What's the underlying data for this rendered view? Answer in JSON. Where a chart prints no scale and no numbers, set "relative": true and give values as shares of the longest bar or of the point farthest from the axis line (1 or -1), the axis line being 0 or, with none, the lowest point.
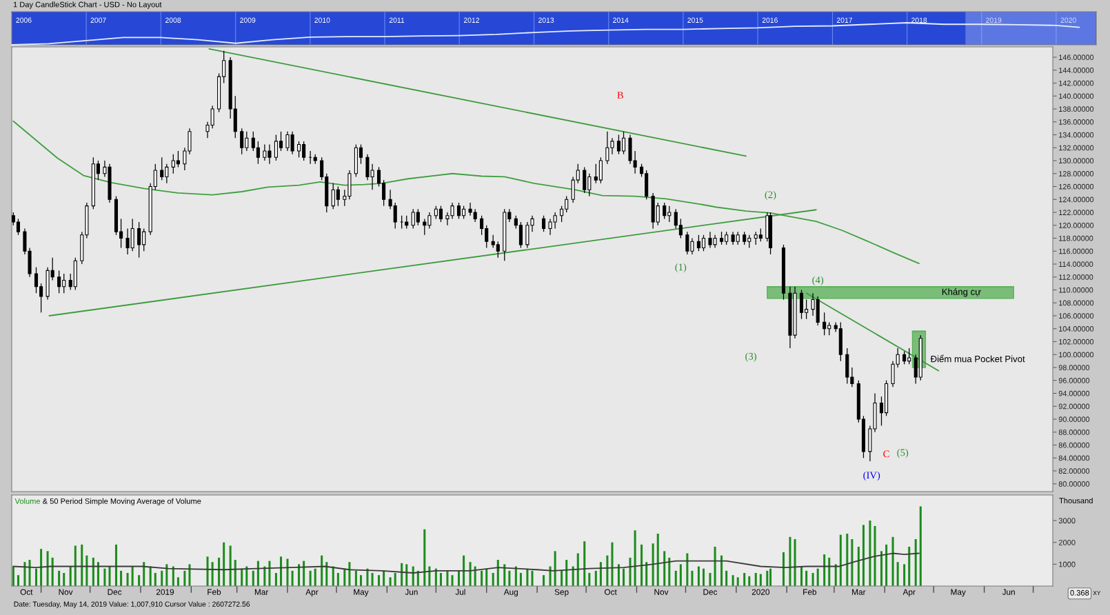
{
  "chart_data": [
    {
      "type": "line",
      "title": "1 Day CandleStick Chart - USD - No Layout",
      "relative": true,
      "x": [
        "2006-01-01",
        "2006-07-01",
        "2007-01-01",
        "2007-07-01",
        "2008-01-01",
        "2008-07-01",
        "2009-01-01",
        "2009-07-01",
        "2010-01-01",
        "2010-07-01",
        "2011-01-01",
        "2011-07-01",
        "2012-01-01",
        "2012-07-01",
        "2013-01-01",
        "2013-07-01",
        "2014-01-01",
        "2014-07-01",
        "2015-01-01",
        "2015-07-01",
        "2016-01-01",
        "2016-07-01",
        "2017-01-01",
        "2017-07-01",
        "2018-01-01",
        "2018-07-01",
        "2019-01-01",
        "2019-07-01",
        "2020-01-01",
        "2020-04-23"
      ],
      "series": [
        {
          "color": "#e6edff",
          "values": [
            0,
            0.05,
            0.19,
            0.33,
            0.33,
            0.23,
            0.07,
            0.23,
            0.35,
            0.37,
            0.37,
            0.4,
            0.42,
            0.47,
            0.56,
            0.63,
            0.67,
            0.7,
            0.7,
            0.74,
            0.77,
            0.84,
            0.86,
            0.93,
            1,
            0.93,
            0.93,
            0.91,
            0.88,
            0.79
          ]
        }
      ],
      "xlim": [
        "2006-01-01",
        "2020-07-15"
      ],
      "xticks": [
        {
          "value": "2006-03-01",
          "label": "2006"
        },
        {
          "value": "2007-01-01",
          "label": null
        },
        {
          "value": "2007-03-01",
          "label": "2007"
        },
        {
          "value": "2008-01-01",
          "label": null
        },
        {
          "value": "2008-03-01",
          "label": "2008"
        },
        {
          "value": "2009-01-01",
          "label": null
        },
        {
          "value": "2009-03-01",
          "label": "2009"
        },
        {
          "value": "2010-01-01",
          "label": null
        },
        {
          "value": "2010-03-01",
          "label": "2010"
        },
        {
          "value": "2011-01-01",
          "label": null
        },
        {
          "value": "2011-03-01",
          "label": "2011"
        },
        {
          "value": "2012-01-01",
          "label": null
        },
        {
          "value": "2012-03-01",
          "label": "2012"
        },
        {
          "value": "2013-01-01",
          "label": null
        },
        {
          "value": "2013-03-01",
          "label": "2013"
        },
        {
          "value": "2014-01-01",
          "label": null
        },
        {
          "value": "2014-03-01",
          "label": "2014"
        },
        {
          "value": "2015-01-01",
          "label": null
        },
        {
          "value": "2015-03-01",
          "label": "2015"
        },
        {
          "value": "2016-01-01",
          "label": null
        },
        {
          "value": "2016-03-01",
          "label": "2016"
        },
        {
          "value": "2017-01-01",
          "label": null
        },
        {
          "value": "2017-03-01",
          "label": "2017"
        },
        {
          "value": "2018-01-01",
          "label": null
        },
        {
          "value": "2018-03-01",
          "label": "2018"
        },
        {
          "value": "2019-01-01",
          "label": null
        },
        {
          "value": "2019-03-01",
          "label": "2019"
        },
        {
          "value": "2020-01-01",
          "label": null
        },
        {
          "value": "2020-03-01",
          "label": "2020"
        }
      ],
      "grid": "x",
      "bands": [
        {
          "axis": "x",
          "from": "2018-10-14",
          "to": "2020-07-13",
          "color": "#9fb2f2"
        }
      ],
      "tick_labels": "x"
    },
    {
      "type": "candlestick",
      "color": "#000000",
      "x": [
        "2018-10-15",
        "2018-10-18",
        "2018-10-22",
        "2018-10-25",
        "2018-10-29",
        "2018-11-01",
        "2018-11-05",
        "2018-11-08",
        "2018-11-12",
        "2018-11-15",
        "2018-11-19",
        "2018-11-22",
        "2018-11-26",
        "2018-11-29",
        "2018-12-03",
        "2018-12-06",
        "2018-12-10",
        "2018-12-13",
        "2018-12-17",
        "2018-12-20",
        "2018-12-24",
        "2018-12-27",
        "2018-12-31",
        "2019-01-03",
        "2019-01-07",
        "2019-01-10",
        "2019-01-14",
        "2019-01-17",
        "2019-01-21",
        "2019-01-24",
        "2019-01-28",
        "2019-01-31",
        "2019-02-11",
        "2019-02-14",
        "2019-02-18",
        "2019-02-21",
        "2019-02-25",
        "2019-02-28",
        "2019-03-04",
        "2019-03-07",
        "2019-03-11",
        "2019-03-14",
        "2019-03-18",
        "2019-03-21",
        "2019-03-25",
        "2019-03-28",
        "2019-04-01",
        "2019-04-04",
        "2019-04-08",
        "2019-04-11",
        "2019-04-15",
        "2019-04-18",
        "2019-04-22",
        "2019-04-25",
        "2019-04-29",
        "2019-05-02",
        "2019-05-06",
        "2019-05-09",
        "2019-05-13",
        "2019-05-16",
        "2019-05-20",
        "2019-05-23",
        "2019-05-27",
        "2019-05-30",
        "2019-06-03",
        "2019-06-06",
        "2019-06-10",
        "2019-06-13",
        "2019-06-17",
        "2019-06-20",
        "2019-06-24",
        "2019-06-27",
        "2019-07-01",
        "2019-07-04",
        "2019-07-08",
        "2019-07-11",
        "2019-07-15",
        "2019-07-18",
        "2019-07-22",
        "2019-07-25",
        "2019-07-29",
        "2019-08-01",
        "2019-08-05",
        "2019-08-08",
        "2019-08-12",
        "2019-08-15",
        "2019-08-19",
        "2019-08-22",
        "2019-08-26",
        "2019-08-29",
        "2019-09-05",
        "2019-09-09",
        "2019-09-12",
        "2019-09-16",
        "2019-09-19",
        "2019-09-23",
        "2019-09-26",
        "2019-09-30",
        "2019-10-03",
        "2019-10-07",
        "2019-10-10",
        "2019-10-14",
        "2019-10-17",
        "2019-10-21",
        "2019-10-24",
        "2019-10-28",
        "2019-10-31",
        "2019-11-04",
        "2019-11-07",
        "2019-11-11",
        "2019-11-14",
        "2019-11-18",
        "2019-11-21",
        "2019-11-25",
        "2019-11-28",
        "2019-12-02",
        "2019-12-05",
        "2019-12-09",
        "2019-12-12",
        "2019-12-16",
        "2019-12-19",
        "2019-12-23",
        "2019-12-26",
        "2019-12-30",
        "2020-01-02",
        "2020-01-06",
        "2020-01-09",
        "2020-01-13",
        "2020-01-16",
        "2020-01-20",
        "2020-01-22",
        "2020-01-30",
        "2020-02-03",
        "2020-02-06",
        "2020-02-10",
        "2020-02-13",
        "2020-02-17",
        "2020-02-20",
        "2020-02-24",
        "2020-02-27",
        "2020-03-02",
        "2020-03-05",
        "2020-03-09",
        "2020-03-12",
        "2020-03-16",
        "2020-03-19",
        "2020-03-23",
        "2020-03-26",
        "2020-03-30",
        "2020-04-02",
        "2020-04-06",
        "2020-04-09",
        "2020-04-13",
        "2020-04-16",
        "2020-04-20",
        "2020-04-23"
      ],
      "ohlc": [
        [
          121.5,
          122,
          120,
          120.5
        ],
        [
          120.5,
          121,
          118.5,
          119
        ],
        [
          119,
          119.5,
          115.5,
          116
        ],
        [
          116,
          116.5,
          112,
          112.5
        ],
        [
          112.5,
          113.5,
          109.5,
          110.5
        ],
        [
          110.5,
          111,
          106.5,
          109
        ],
        [
          109,
          113.5,
          108.5,
          113
        ],
        [
          113,
          115,
          111.5,
          112
        ],
        [
          112,
          113,
          109.5,
          110.5
        ],
        [
          110.5,
          112.5,
          109.5,
          111.5
        ],
        [
          111.5,
          112.5,
          110,
          110.5
        ],
        [
          110.5,
          115,
          110,
          114.5
        ],
        [
          114.5,
          119,
          114,
          118.5
        ],
        [
          118.5,
          123.5,
          118,
          123
        ],
        [
          123,
          130.5,
          122.5,
          129.5
        ],
        [
          129.5,
          130,
          127,
          128
        ],
        [
          128,
          130,
          127.5,
          129
        ],
        [
          129,
          129.5,
          123.5,
          124
        ],
        [
          124,
          124.5,
          118.5,
          119
        ],
        [
          119,
          121,
          116.5,
          118
        ],
        [
          118,
          119.5,
          115.5,
          116.5
        ],
        [
          116.5,
          121,
          116,
          119.5
        ],
        [
          119.5,
          120.5,
          115,
          117
        ],
        [
          117,
          119.5,
          116,
          119
        ],
        [
          119,
          126.5,
          118.5,
          126
        ],
        [
          126,
          129.5,
          125.5,
          128.5
        ],
        [
          128.5,
          130.5,
          127,
          127.5
        ],
        [
          127.5,
          129.5,
          126.5,
          129
        ],
        [
          129,
          131,
          128,
          130
        ],
        [
          130,
          131.5,
          129,
          129.5
        ],
        [
          129.5,
          132,
          128.5,
          131.5
        ],
        [
          131.5,
          135,
          131,
          134.5
        ],
        [
          134.5,
          136,
          133.5,
          135.5
        ],
        [
          135.5,
          138.5,
          135,
          138
        ],
        [
          138,
          143.5,
          137.5,
          143
        ],
        [
          143,
          147,
          142,
          145.5
        ],
        [
          145.5,
          146,
          136.5,
          138
        ],
        [
          138,
          140,
          133.5,
          134.5
        ],
        [
          134.5,
          135,
          131,
          132
        ],
        [
          132,
          134.5,
          131.5,
          133.5
        ],
        [
          133.5,
          134.5,
          131.5,
          132
        ],
        [
          132,
          133,
          129.5,
          130.5
        ],
        [
          130.5,
          132.5,
          130,
          131.5
        ],
        [
          131.5,
          132.5,
          129.5,
          130.5
        ],
        [
          130.5,
          134,
          130,
          133
        ],
        [
          133,
          134.5,
          131.5,
          132
        ],
        [
          132,
          134.5,
          131.5,
          134
        ],
        [
          134,
          134.5,
          131,
          131.5
        ],
        [
          131.5,
          133,
          130.5,
          132.5
        ],
        [
          132.5,
          133,
          130,
          130.5
        ],
        [
          130.5,
          131.5,
          129.5,
          130.5
        ],
        [
          130.5,
          131,
          129.5,
          130
        ],
        [
          130,
          130.5,
          127,
          127.5
        ],
        [
          127.5,
          128,
          122,
          123
        ],
        [
          123,
          126.5,
          122.5,
          125.5
        ],
        [
          125.5,
          126,
          123,
          124
        ],
        [
          124,
          125.5,
          123,
          124.5
        ],
        [
          124.5,
          128.5,
          124,
          128
        ],
        [
          128,
          132.5,
          127.5,
          132
        ],
        [
          132,
          132.5,
          129.5,
          130.5
        ],
        [
          130.5,
          131,
          127,
          127.5
        ],
        [
          127.5,
          129.5,
          125.5,
          128.5
        ],
        [
          128.5,
          129,
          126,
          126.5
        ],
        [
          126.5,
          127,
          123,
          124
        ],
        [
          124,
          125.5,
          122.5,
          123
        ],
        [
          123,
          123.5,
          119.5,
          120.5
        ],
        [
          120.5,
          121.5,
          119.5,
          120.5
        ],
        [
          120.5,
          121.5,
          119.5,
          120
        ],
        [
          120,
          122.5,
          119.5,
          122
        ],
        [
          122,
          122.5,
          120,
          120.5
        ],
        [
          120.5,
          121,
          118.5,
          120
        ],
        [
          120,
          122,
          119.5,
          121.5
        ],
        [
          121.5,
          123,
          121,
          122.5
        ],
        [
          122.5,
          123,
          120.5,
          121
        ],
        [
          121,
          122,
          120,
          121.5
        ],
        [
          121.5,
          123.5,
          121,
          123
        ],
        [
          123,
          123.5,
          121,
          121.5
        ],
        [
          121.5,
          123,
          121,
          122.5
        ],
        [
          122.5,
          123.5,
          121.5,
          122
        ],
        [
          122,
          122.5,
          120.5,
          121
        ],
        [
          121,
          121.5,
          118.5,
          119.5
        ],
        [
          119.5,
          120,
          116.5,
          117.5
        ],
        [
          117.5,
          118.5,
          116.5,
          117
        ],
        [
          117,
          117.5,
          115,
          116
        ],
        [
          116,
          122.5,
          114.5,
          122
        ],
        [
          122,
          122.5,
          120.5,
          121
        ],
        [
          121,
          121.5,
          119.5,
          120
        ],
        [
          120,
          120.5,
          116.5,
          117
        ],
        [
          117,
          120.5,
          116.5,
          120
        ],
        [
          120,
          121.5,
          119,
          121
        ],
        [
          121,
          121.5,
          119,
          119.5
        ],
        [
          119.5,
          121,
          118.5,
          120.5
        ],
        [
          120.5,
          122,
          119.5,
          121.5
        ],
        [
          121.5,
          123,
          120.5,
          122.5
        ],
        [
          122.5,
          124.5,
          122,
          124
        ],
        [
          124,
          127.5,
          123.5,
          127
        ],
        [
          127,
          129.5,
          126.5,
          128.5
        ],
        [
          128.5,
          129,
          125,
          125.5
        ],
        [
          125.5,
          128,
          124.5,
          127.5
        ],
        [
          127.5,
          129.5,
          126.5,
          127
        ],
        [
          127,
          130.5,
          126.5,
          130
        ],
        [
          130,
          134.5,
          129.5,
          132
        ],
        [
          132,
          133.5,
          131,
          133
        ],
        [
          133,
          134,
          131,
          131.5
        ],
        [
          131.5,
          134.5,
          131,
          133.5
        ],
        [
          133.5,
          134,
          129.5,
          130
        ],
        [
          130,
          131.5,
          128,
          129
        ],
        [
          129,
          129.5,
          127.5,
          128
        ],
        [
          128,
          128.5,
          124,
          124.5
        ],
        [
          124.5,
          125,
          119.5,
          120.5
        ],
        [
          120.5,
          123.5,
          120,
          123
        ],
        [
          123,
          123.5,
          121,
          121.5
        ],
        [
          121.5,
          123,
          120.5,
          122
        ],
        [
          122,
          122.5,
          119.5,
          120
        ],
        [
          120,
          121,
          118,
          118.5
        ],
        [
          118.5,
          119,
          115.5,
          116
        ],
        [
          116,
          118,
          115.5,
          117.5
        ],
        [
          117.5,
          118.5,
          116,
          116.5
        ],
        [
          116.5,
          118.5,
          116,
          118
        ],
        [
          118,
          119,
          116.5,
          117
        ],
        [
          117,
          118.5,
          116.5,
          118
        ],
        [
          118,
          119,
          117,
          117.5
        ],
        [
          117.5,
          119,
          117,
          118.5
        ],
        [
          118.5,
          119,
          117,
          117.5
        ],
        [
          117.5,
          119,
          117,
          118.5
        ],
        [
          118.5,
          119,
          117,
          117.5
        ],
        [
          117.5,
          118.5,
          116.5,
          118
        ],
        [
          118,
          119,
          117,
          118.5
        ],
        [
          118.5,
          119.5,
          117.5,
          118
        ],
        [
          118,
          122,
          117.5,
          121.5
        ],
        [
          121.5,
          122,
          115.5,
          116.5
        ],
        [
          116.5,
          117,
          108.5,
          109.5
        ],
        [
          109.5,
          110.5,
          101,
          103
        ],
        [
          103,
          110.5,
          102.5,
          109.5
        ],
        [
          109.5,
          110,
          105.5,
          106.5
        ],
        [
          106.5,
          108.5,
          105.5,
          107
        ],
        [
          107,
          109.5,
          106,
          108.5
        ],
        [
          108.5,
          109,
          104.5,
          105
        ],
        [
          105,
          106.5,
          103,
          104
        ],
        [
          104,
          105,
          103,
          104.5
        ],
        [
          104.5,
          105,
          103.5,
          104
        ],
        [
          104,
          105,
          99,
          100
        ],
        [
          100,
          101,
          95.5,
          96.5
        ],
        [
          96.5,
          98,
          95,
          95.5
        ],
        [
          95.5,
          96,
          89.5,
          90
        ],
        [
          90,
          90.5,
          84,
          85
        ],
        [
          85,
          89,
          83.5,
          88.5
        ],
        [
          88.5,
          94,
          88,
          92.5
        ],
        [
          92.5,
          93.5,
          89,
          91
        ],
        [
          91,
          96,
          90.5,
          95.5
        ],
        [
          95.5,
          99,
          95,
          98.5
        ],
        [
          98.5,
          101,
          98,
          100
        ],
        [
          100,
          100.5,
          98.5,
          99
        ],
        [
          99,
          101,
          98.5,
          99.5
        ],
        [
          99.5,
          100,
          95.5,
          96.5
        ],
        [
          96.5,
          103,
          96,
          102.5
        ]
      ],
      "series": [
        {
          "type": "line",
          "x": [
            "2020-01-20",
            "2020-06-19"
          ],
          "values": [
            110.5,
            110.5
          ],
          "lower": [
            108.7,
            108.7
          ],
          "upper": [
            110.5,
            110.5
          ],
          "color": "#5cb15c"
        },
        {
          "type": "line",
          "x": [
            "2020-04-18",
            "2020-04-26"
          ],
          "values": [
            103.6,
            103.6
          ],
          "lower": [
            98,
            98
          ],
          "upper": [
            103.6,
            103.6
          ],
          "color": "#5cb15c"
        },
        {
          "type": "line",
          "x": [
            "2019-02-12",
            "2020-01-07"
          ],
          "values": [
            147.3,
            130.7
          ],
          "color": "#3c9b3c"
        },
        {
          "type": "line",
          "x": [
            "2018-11-06",
            "2020-02-19"
          ],
          "values": [
            106.0,
            122.4
          ],
          "color": "#3c9b3c"
        },
        {
          "type": "line",
          "x": [
            "2020-02-13",
            "2020-05-04"
          ],
          "values": [
            109.5,
            97.5
          ],
          "color": "#3c9b3c"
        },
        {
          "type": "line",
          "x": [
            "2018-10-15",
            "2018-11-11",
            "2018-11-27",
            "2018-12-14",
            "2019-01-03",
            "2019-01-24",
            "2019-02-14",
            "2019-03-04",
            "2019-03-20",
            "2019-04-08",
            "2019-04-21",
            "2019-05-06",
            "2019-05-18",
            "2019-05-29",
            "2019-06-14",
            "2019-07-11",
            "2019-07-29",
            "2019-08-12",
            "2019-08-30",
            "2019-09-24",
            "2019-10-11",
            "2019-10-31",
            "2019-11-19",
            "2019-12-09",
            "2019-12-20",
            "2020-01-07",
            "2020-01-22",
            "2020-02-19",
            "2020-03-06",
            "2020-03-20",
            "2020-04-07",
            "2020-04-22"
          ],
          "values": [
            136.1,
            130.4,
            127.7,
            126.6,
            125.7,
            125.0,
            124.7,
            125.2,
            125.9,
            126.2,
            126.7,
            126.2,
            126.3,
            126.5,
            127.2,
            128.0,
            127.6,
            127.5,
            126.5,
            125.5,
            124.6,
            124.5,
            124.1,
            123.3,
            122.8,
            122.2,
            121.9,
            120.6,
            119.2,
            117.7,
            115.7,
            114.1
          ],
          "color": "#3f9f3f"
        }
      ],
      "xlim": [
        "2018-10-14",
        "2020-07-13"
      ],
      "ylim": [
        78.8,
        147.6
      ],
      "yticks": [
        {
          "value": 80,
          "label": "80.00000"
        },
        {
          "value": 82,
          "label": "82.00000"
        },
        {
          "value": 84,
          "label": "84.00000"
        },
        {
          "value": 86,
          "label": "86.00000"
        },
        {
          "value": 88,
          "label": "88.00000"
        },
        {
          "value": 90,
          "label": "90.00000"
        },
        {
          "value": 92,
          "label": "92.00000"
        },
        {
          "value": 94,
          "label": "94.00000"
        },
        {
          "value": 96,
          "label": "96.00000"
        },
        {
          "value": 98,
          "label": "98.00000"
        },
        {
          "value": 100,
          "label": "100.00000"
        },
        {
          "value": 102,
          "label": "102.00000"
        },
        {
          "value": 104,
          "label": "104.00000"
        },
        {
          "value": 106,
          "label": "106.00000"
        },
        {
          "value": 108,
          "label": "108.00000"
        },
        {
          "value": 110,
          "label": "110.00000"
        },
        {
          "value": 112,
          "label": "112.00000"
        },
        {
          "value": 114,
          "label": "114.00000"
        },
        {
          "value": 116,
          "label": "116.00000"
        },
        {
          "value": 118,
          "label": "118.00000"
        },
        {
          "value": 120,
          "label": "120.00000"
        },
        {
          "value": 122,
          "label": "122.00000"
        },
        {
          "value": 124,
          "label": "124.00000"
        },
        {
          "value": 126,
          "label": "126.00000"
        },
        {
          "value": 128,
          "label": "128.00000"
        },
        {
          "value": 130,
          "label": "130.00000"
        },
        {
          "value": 132,
          "label": "132.00000"
        },
        {
          "value": 134,
          "label": "134.00000"
        },
        {
          "value": 136,
          "label": "136.00000"
        },
        {
          "value": 138,
          "label": "138.00000"
        },
        {
          "value": 140,
          "label": "140.00000"
        },
        {
          "value": 142,
          "label": "142.00000"
        },
        {
          "value": 144,
          "label": "144.00000"
        },
        {
          "value": 146,
          "label": "146.00000"
        }
      ],
      "tick_labels": "y",
      "annotations": [
        "B",
        "(1)",
        "(2)",
        "(3)",
        "(4)",
        "C",
        "(5)",
        "(IV)",
        "Kháng cự",
        "Điểm mua Pocket Pivot"
      ]
    },
    {
      "type": "bar",
      "title": "Volume & 50 Period Simple Moving Average of Volume",
      "ylabel": "Thousand",
      "x": [
        "2018-10-15",
        "2018-10-18",
        "2018-10-22",
        "2018-10-25",
        "2018-10-29",
        "2018-11-01",
        "2018-11-05",
        "2018-11-08",
        "2018-11-12",
        "2018-11-15",
        "2018-11-19",
        "2018-11-22",
        "2018-11-26",
        "2018-11-29",
        "2018-12-03",
        "2018-12-06",
        "2018-12-10",
        "2018-12-13",
        "2018-12-17",
        "2018-12-20",
        "2018-12-24",
        "2018-12-27",
        "2018-12-31",
        "2019-01-03",
        "2019-01-07",
        "2019-01-10",
        "2019-01-14",
        "2019-01-17",
        "2019-01-21",
        "2019-01-24",
        "2019-01-28",
        "2019-01-31",
        "2019-02-11",
        "2019-02-14",
        "2019-02-18",
        "2019-02-21",
        "2019-02-25",
        "2019-02-28",
        "2019-03-04",
        "2019-03-07",
        "2019-03-11",
        "2019-03-14",
        "2019-03-18",
        "2019-03-21",
        "2019-03-25",
        "2019-03-28",
        "2019-04-01",
        "2019-04-04",
        "2019-04-08",
        "2019-04-11",
        "2019-04-15",
        "2019-04-18",
        "2019-04-22",
        "2019-04-25",
        "2019-04-29",
        "2019-05-02",
        "2019-05-06",
        "2019-05-09",
        "2019-05-13",
        "2019-05-16",
        "2019-05-20",
        "2019-05-23",
        "2019-05-27",
        "2019-05-30",
        "2019-06-03",
        "2019-06-06",
        "2019-06-10",
        "2019-06-13",
        "2019-06-17",
        "2019-06-20",
        "2019-06-24",
        "2019-06-27",
        "2019-07-01",
        "2019-07-04",
        "2019-07-08",
        "2019-07-11",
        "2019-07-15",
        "2019-07-18",
        "2019-07-22",
        "2019-07-25",
        "2019-07-29",
        "2019-08-01",
        "2019-08-05",
        "2019-08-08",
        "2019-08-12",
        "2019-08-15",
        "2019-08-19",
        "2019-08-22",
        "2019-08-26",
        "2019-08-29",
        "2019-09-05",
        "2019-09-09",
        "2019-09-12",
        "2019-09-16",
        "2019-09-19",
        "2019-09-23",
        "2019-09-26",
        "2019-09-30",
        "2019-10-03",
        "2019-10-07",
        "2019-10-10",
        "2019-10-14",
        "2019-10-17",
        "2019-10-21",
        "2019-10-24",
        "2019-10-28",
        "2019-10-31",
        "2019-11-04",
        "2019-11-07",
        "2019-11-11",
        "2019-11-14",
        "2019-11-18",
        "2019-11-21",
        "2019-11-25",
        "2019-11-28",
        "2019-12-02",
        "2019-12-05",
        "2019-12-09",
        "2019-12-12",
        "2019-12-16",
        "2019-12-19",
        "2019-12-23",
        "2019-12-26",
        "2019-12-30",
        "2020-01-02",
        "2020-01-06",
        "2020-01-09",
        "2020-01-13",
        "2020-01-16",
        "2020-01-20",
        "2020-01-22",
        "2020-01-30",
        "2020-02-03",
        "2020-02-06",
        "2020-02-10",
        "2020-02-13",
        "2020-02-17",
        "2020-02-20",
        "2020-02-24",
        "2020-02-27",
        "2020-03-02",
        "2020-03-05",
        "2020-03-09",
        "2020-03-12",
        "2020-03-16",
        "2020-03-19",
        "2020-03-23",
        "2020-03-26",
        "2020-03-30",
        "2020-04-02",
        "2020-04-06",
        "2020-04-09",
        "2020-04-13",
        "2020-04-16",
        "2020-04-20",
        "2020-04-23"
      ],
      "series": [
        {
          "color": "#1c8c1c",
          "values": [
            900,
            500,
            1100,
            1200,
            800,
            1700,
            1600,
            1300,
            700,
            600,
            900,
            1850,
            1900,
            1400,
            1300,
            1100,
            800,
            900,
            1900,
            700,
            600,
            900,
            500,
            1100,
            900,
            600,
            700,
            1000,
            900,
            400,
            700,
            1000,
            1350,
            1100,
            1300,
            2000,
            1850,
            1200,
            800,
            900,
            700,
            1150,
            900,
            1150,
            600,
            1350,
            1250,
            700,
            1000,
            1150,
            700,
            800,
            1400,
            1100,
            900,
            600,
            800,
            1100,
            700,
            500,
            800,
            600,
            500,
            700,
            400,
            600,
            1050,
            1000,
            900,
            700,
            2600,
            900,
            800,
            600,
            700,
            500,
            700,
            1400,
            1100,
            900,
            700,
            800,
            600,
            1200,
            1000,
            700,
            900,
            600,
            800,
            700,
            500,
            900,
            1600,
            700,
            1200,
            900,
            1500,
            2050,
            600,
            700,
            1100,
            1400,
            2000,
            1000,
            800,
            1300,
            2550,
            1900,
            1100,
            1950,
            2400,
            1600,
            1300,
            700,
            1000,
            1500,
            700,
            900,
            800,
            600,
            1800,
            1400,
            700,
            500,
            400,
            600,
            450,
            600,
            550,
            700,
            800,
            1550,
            2250,
            2150,
            900,
            700,
            600,
            800,
            1450,
            1300,
            1000,
            2350,
            2400,
            2150,
            1800,
            2800,
            3000,
            2750,
            1600,
            1900,
            2250,
            1100,
            1000,
            1800,
            2150,
            3650
          ]
        },
        {
          "type": "line",
          "color": "#3a3a3a",
          "x": [
            "2018-10-15",
            "2018-10-29",
            "2018-11-07",
            "2018-12-10",
            "2019-01-02",
            "2019-01-18",
            "2019-02-21",
            "2019-03-13",
            "2019-04-03",
            "2019-04-24",
            "2019-05-09",
            "2019-05-29",
            "2019-06-17",
            "2019-07-01",
            "2019-07-22",
            "2019-08-08",
            "2019-09-01",
            "2019-09-11",
            "2019-10-03",
            "2019-10-24",
            "2019-11-11",
            "2019-11-25",
            "2019-12-04",
            "2019-12-26",
            "2020-01-16",
            "2020-01-31",
            "2020-02-13",
            "2020-03-04",
            "2020-03-13",
            "2020-03-25",
            "2020-04-06",
            "2020-04-13",
            "2020-04-22"
          ],
          "values": [
            900,
            850,
            900,
            900,
            900,
            800,
            750,
            800,
            850,
            900,
            750,
            700,
            600,
            700,
            700,
            850,
            750,
            700,
            800,
            850,
            1000,
            1150,
            1150,
            1150,
            900,
            850,
            900,
            900,
            1100,
            1350,
            1500,
            1450,
            1500
          ]
        }
      ],
      "xlim": [
        "2018-10-14",
        "2020-07-13"
      ],
      "xticks": [
        {
          "value": "2018-10-23",
          "label": "Oct"
        },
        {
          "value": "2018-11-01",
          "label": null
        },
        {
          "value": "2018-11-16",
          "label": "Nov"
        },
        {
          "value": "2018-12-01",
          "label": null
        },
        {
          "value": "2018-12-16",
          "label": "Dec"
        },
        {
          "value": "2019-01-01",
          "label": null
        },
        {
          "value": "2019-01-16",
          "label": "2019"
        },
        {
          "value": "2019-02-01",
          "label": null
        },
        {
          "value": "2019-02-15",
          "label": "Feb"
        },
        {
          "value": "2019-03-01",
          "label": null
        },
        {
          "value": "2019-03-16",
          "label": "Mar"
        },
        {
          "value": "2019-04-01",
          "label": null
        },
        {
          "value": "2019-04-16",
          "label": "Apr"
        },
        {
          "value": "2019-05-01",
          "label": null
        },
        {
          "value": "2019-05-16",
          "label": "May"
        },
        {
          "value": "2019-06-01",
          "label": null
        },
        {
          "value": "2019-06-16",
          "label": "Jun"
        },
        {
          "value": "2019-07-01",
          "label": null
        },
        {
          "value": "2019-07-16",
          "label": "Jul"
        },
        {
          "value": "2019-08-01",
          "label": null
        },
        {
          "value": "2019-08-16",
          "label": "Aug"
        },
        {
          "value": "2019-09-01",
          "label": null
        },
        {
          "value": "2019-09-16",
          "label": "Sep"
        },
        {
          "value": "2019-10-01",
          "label": null
        },
        {
          "value": "2019-10-16",
          "label": "Oct"
        },
        {
          "value": "2019-11-01",
          "label": null
        },
        {
          "value": "2019-11-16",
          "label": "Nov"
        },
        {
          "value": "2019-12-01",
          "label": null
        },
        {
          "value": "2019-12-16",
          "label": "Dec"
        },
        {
          "value": "2020-01-01",
          "label": null
        },
        {
          "value": "2020-01-16",
          "label": "2020"
        },
        {
          "value": "2020-02-01",
          "label": null
        },
        {
          "value": "2020-02-15",
          "label": "Feb"
        },
        {
          "value": "2020-03-01",
          "label": null
        },
        {
          "value": "2020-03-16",
          "label": "Mar"
        },
        {
          "value": "2020-04-01",
          "label": null
        },
        {
          "value": "2020-04-16",
          "label": "Apr"
        },
        {
          "value": "2020-05-01",
          "label": null
        },
        {
          "value": "2020-05-16",
          "label": "May"
        },
        {
          "value": "2020-06-01",
          "label": null
        },
        {
          "value": "2020-06-16",
          "label": "Jun"
        },
        {
          "value": "2020-07-01",
          "label": null
        }
      ],
      "ylim": [
        0,
        4170
      ],
      "yticks": [
        1000,
        2000,
        3000
      ],
      "annotations": [
        "Date: Tuesday, May 14, 2019 Value: 1,007,910 Cursor Value : 2607272.56",
        "0.368",
        "XY"
      ]
    }
  ]
}
